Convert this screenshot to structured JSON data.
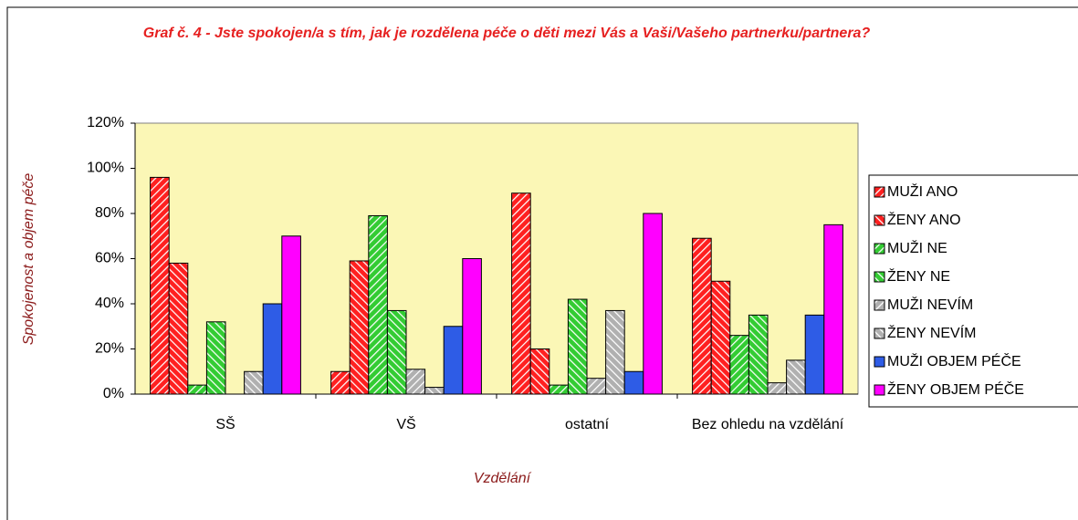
{
  "chart_data": {
    "type": "bar",
    "title": "Graf č. 4 - Jste spokojen/a s tím, jak je rozdělena péče o děti mezi Vás a Vaši/Vašeho partnerku/partnera?",
    "x_label": "Vzdělání",
    "y_label": "Spokojenost a objem péče",
    "categories": [
      "SŠ",
      "VŠ",
      "ostatní",
      "Bez ohledu na vzdělání"
    ],
    "series": [
      {
        "name": "MUŽI ANO",
        "color": "#ff2020",
        "pattern": "up",
        "values": [
          96,
          10,
          89,
          69
        ]
      },
      {
        "name": "ŽENY ANO",
        "color": "#ff2020",
        "pattern": "down",
        "values": [
          58,
          59,
          20,
          50
        ]
      },
      {
        "name": "MUŽI NE",
        "color": "#33cc33",
        "pattern": "up",
        "values": [
          4,
          79,
          4,
          26
        ]
      },
      {
        "name": "ŽENY NE",
        "color": "#33cc33",
        "pattern": "down",
        "values": [
          32,
          37,
          42,
          35
        ]
      },
      {
        "name": "MUŽI NEVÍM",
        "color": "#b0b0b0",
        "pattern": "up",
        "values": [
          0,
          11,
          7,
          5
        ]
      },
      {
        "name": "ŽENY NEVÍM",
        "color": "#b0b0b0",
        "pattern": "down",
        "values": [
          10,
          3,
          37,
          15
        ]
      },
      {
        "name": "MUŽI OBJEM PÉČE",
        "color": "#2e5ce6",
        "pattern": null,
        "values": [
          40,
          30,
          10,
          35
        ]
      },
      {
        "name": "ŽENY OBJEM PÉČE",
        "color": "#ff00ff",
        "pattern": null,
        "values": [
          70,
          60,
          80,
          75
        ]
      }
    ],
    "ylim": [
      0,
      120
    ],
    "yticks": [
      {
        "value": 0,
        "label": "0%"
      },
      {
        "value": 20,
        "label": "20%"
      },
      {
        "value": 40,
        "label": "40%"
      },
      {
        "value": 60,
        "label": "60%"
      },
      {
        "value": 80,
        "label": "80%"
      },
      {
        "value": 100,
        "label": "100%"
      },
      {
        "value": 120,
        "label": "120%"
      }
    ],
    "plot_background": "#fbf7b6",
    "legend": "right"
  }
}
